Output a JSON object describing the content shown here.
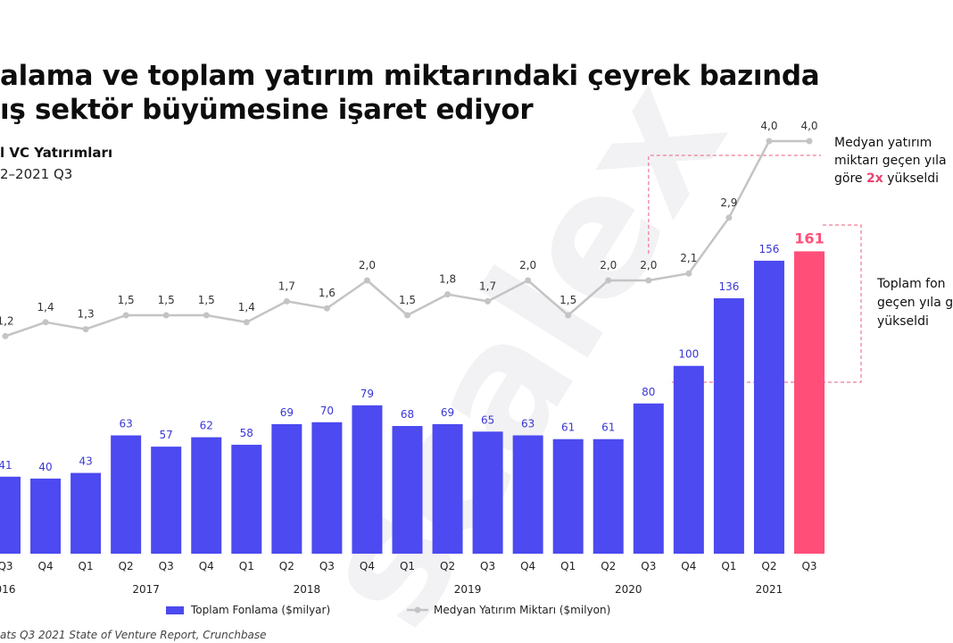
{
  "title_line1": "alama ve toplam yatırım miktarındaki çeyrek bazında",
  "title_line2": "ış sektör büyümesine işaret ediyor",
  "subtitle1": "l VC Yatırımları",
  "subtitle2": "2–2021 Q3",
  "watermark_text": "scalex",
  "annotation_median": {
    "line1": "Medyan yatırım",
    "line2": "miktarı geçen yıla",
    "line3_pre": "göre ",
    "line3_hl": "2x",
    "line3_post": " yükseldi"
  },
  "annotation_total": {
    "line1": "Toplam fon",
    "line2": "geçen yıla g",
    "line3": "yükseldi"
  },
  "legend": {
    "bar_label": "Toplam Fonlama ($milyar)",
    "line_label": "Medyan Yatırım Miktarı ($milyon)"
  },
  "source": "ats Q3 2021 State of Venture Report, Crunchbase",
  "colors": {
    "bar": "#4c4af0",
    "highlight": "#ff4f79",
    "line": "#c4c4c4",
    "dash": "#f07a95",
    "value_label": "#3a37d6"
  },
  "chart_data": {
    "type": "bar",
    "categories": [
      "Q3",
      "Q4",
      "Q1",
      "Q2",
      "Q3",
      "Q4",
      "Q1",
      "Q2",
      "Q3",
      "Q4",
      "Q1",
      "Q2",
      "Q3",
      "Q4",
      "Q1",
      "Q2",
      "Q3",
      "Q4",
      "Q1",
      "Q2",
      "Q3"
    ],
    "year_labels": [
      {
        "label": "016",
        "index": 0
      },
      {
        "label": "2017",
        "index": 3.5
      },
      {
        "label": "2018",
        "index": 7.5
      },
      {
        "label": "2019",
        "index": 11.5
      },
      {
        "label": "2020",
        "index": 15.5
      },
      {
        "label": "2021",
        "index": 19
      }
    ],
    "series": [
      {
        "name": "Toplam Fonlama ($milyar)",
        "type": "bar",
        "values": [
          41,
          40,
          43,
          63,
          57,
          62,
          58,
          69,
          70,
          79,
          68,
          69,
          65,
          63,
          61,
          61,
          80,
          100,
          136,
          156,
          161
        ]
      },
      {
        "name": "Medyan Yatırım Miktarı ($milyon)",
        "type": "line",
        "values": [
          1.2,
          1.4,
          1.3,
          1.5,
          1.5,
          1.5,
          1.4,
          1.7,
          1.6,
          2.0,
          1.5,
          1.8,
          1.7,
          2.0,
          1.5,
          2.0,
          2.0,
          2.1,
          2.9,
          4.0,
          4.0
        ],
        "labels": [
          "1,2",
          "1,4",
          "1,3",
          "1,5",
          "1,5",
          "1,5",
          "1,4",
          "1,7",
          "1,6",
          "2,0",
          "1,5",
          "1,8",
          "1,7",
          "2,0",
          "1,5",
          "2,0",
          "2,0",
          "2,1",
          "2,9",
          "4,0",
          "4,0"
        ]
      }
    ],
    "highlight_index": 20
  }
}
